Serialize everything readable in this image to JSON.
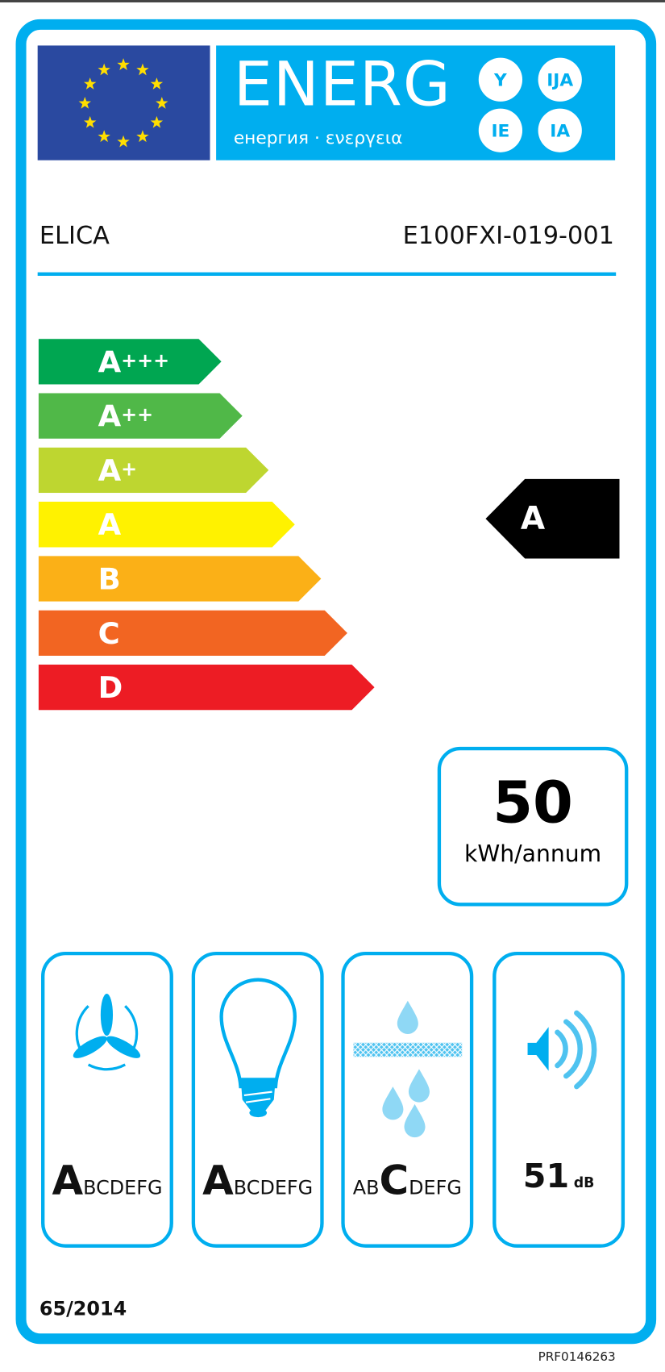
{
  "header": {
    "energy_word": "ENERG",
    "energy_sub": "енергия · ενεργεια",
    "suffixes": [
      "Y",
      "IJA",
      "IE",
      "IA"
    ]
  },
  "supplier": "ELICA",
  "model": "E100FXI-019-001",
  "scale": [
    {
      "letter": "A",
      "plus": "+++",
      "color": "#00a651"
    },
    {
      "letter": "A",
      "plus": "++",
      "color": "#50b848"
    },
    {
      "letter": "A",
      "plus": "+",
      "color": "#bed630"
    },
    {
      "letter": "A",
      "plus": "",
      "color": "#fff200"
    },
    {
      "letter": "B",
      "plus": "",
      "color": "#fbb017"
    },
    {
      "letter": "C",
      "plus": "",
      "color": "#f26522"
    },
    {
      "letter": "D",
      "plus": "",
      "color": "#ed1c24"
    }
  ],
  "rating": "A",
  "consumption": {
    "value": "50",
    "unit": "kWh/annum"
  },
  "fluid_dynamic": {
    "pre": "",
    "big": "A",
    "post": "BCDEFG",
    "icon": "fan-icon"
  },
  "lighting": {
    "pre": "",
    "big": "A",
    "post": "BCDEFG",
    "icon": "light-bulb-icon"
  },
  "grease_filtering": {
    "pre": "AB",
    "big": "C",
    "post": "DEFG",
    "icon": "grease-filter-icon"
  },
  "noise": {
    "value": "51",
    "unit": "dB",
    "icon": "speaker-icon"
  },
  "regulation": "65/2014",
  "product_code": "PRF0146263",
  "colors": {
    "frame": "#00aeef",
    "flag": "#2a49a0",
    "stars": "#ffde00"
  }
}
